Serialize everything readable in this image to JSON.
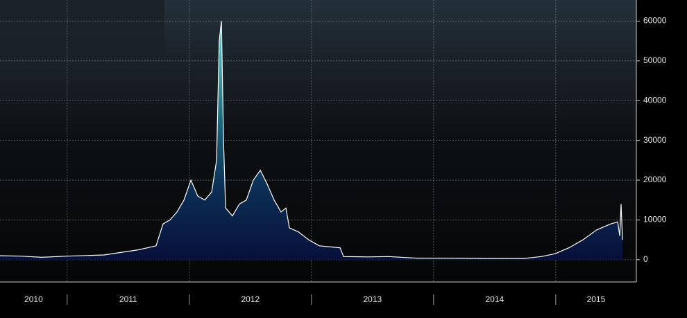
{
  "chart_data": {
    "type": "area",
    "categories": [
      "2010",
      "2011",
      "2012",
      "2013",
      "2014",
      "2015"
    ],
    "xticks": [
      2011,
      2012,
      2013,
      2014,
      2015
    ],
    "xlim": [
      2010.45,
      2015.66
    ],
    "ylim": [
      -5600,
      65300
    ],
    "yticks": [
      0,
      10000,
      20000,
      30000,
      40000,
      50000,
      60000
    ],
    "grid": true,
    "series": [
      {
        "color": "#ffffff",
        "x": [
          2010.45,
          2010.62,
          2010.791,
          2011.0,
          2011.302,
          2011.586,
          2011.728,
          2011.785,
          2011.842,
          2011.899,
          2011.956,
          2012.013,
          2012.069,
          2012.126,
          2012.183,
          2012.223,
          2012.245,
          2012.263,
          2012.28,
          2012.297,
          2012.353,
          2012.41,
          2012.467,
          2012.524,
          2012.581,
          2012.638,
          2012.694,
          2012.751,
          2012.791,
          2012.819,
          2012.893,
          2012.978,
          2013.064,
          2013.234,
          2013.263,
          2013.461,
          2013.632,
          2013.859,
          2014.143,
          2014.427,
          2014.74,
          2014.882,
          2014.995,
          2015.109,
          2015.222,
          2015.336,
          2015.45,
          2015.507,
          2015.524,
          2015.535,
          2015.547
        ],
        "values": [
          1000,
          900,
          600,
          900,
          1200,
          2500,
          3500,
          9000,
          10000,
          12000,
          15000,
          20000,
          16000,
          15000,
          17000,
          25000,
          55000,
          60000,
          30000,
          13000,
          11000,
          14000,
          15000,
          20000,
          22500,
          19000,
          15000,
          12000,
          13000,
          8000,
          7000,
          5000,
          3500,
          3000,
          800,
          700,
          800,
          400,
          400,
          300,
          300,
          800,
          1500,
          3000,
          5000,
          7500,
          9000,
          9500,
          6000,
          14000,
          5000
        ]
      }
    ]
  }
}
